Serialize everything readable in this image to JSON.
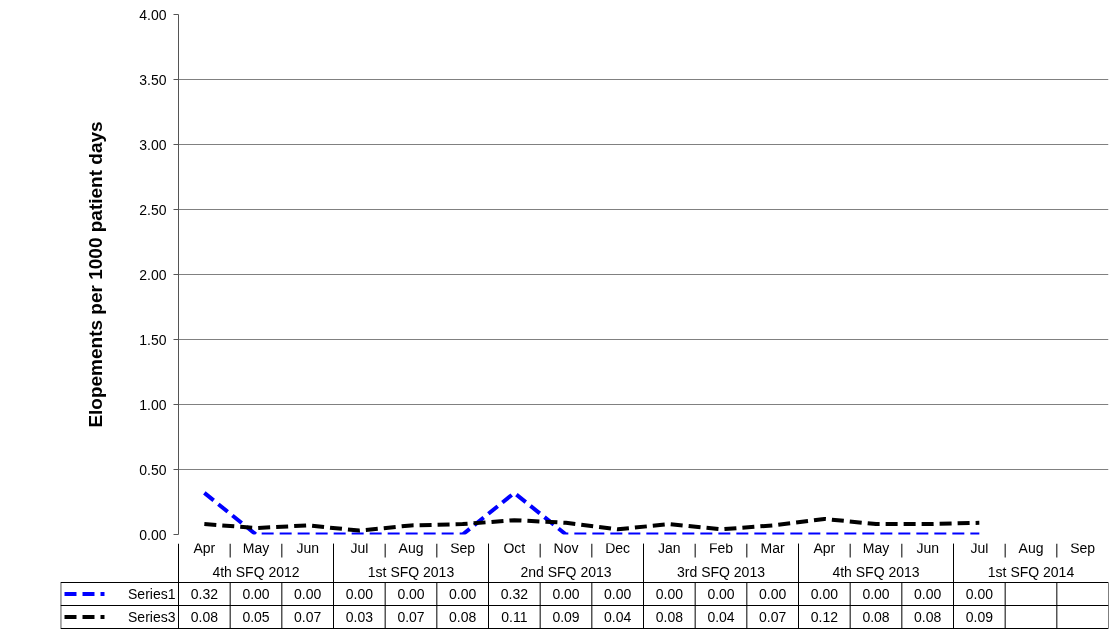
{
  "chart_data": {
    "type": "line",
    "ylabel": "Elopements per 1000 patient days",
    "categories": [
      "Apr",
      "May",
      "Jun",
      "Jul",
      "Aug",
      "Sep",
      "Oct",
      "Nov",
      "Dec",
      "Jan",
      "Feb",
      "Mar",
      "Apr",
      "May",
      "Jun",
      "Jul",
      "Aug",
      "Sep"
    ],
    "annotations": [
      "4th SFQ 2012",
      "1st SFQ 2013",
      "2nd SFQ 2013",
      "3rd SFQ 2013",
      "4th SFQ 2013",
      "1st SFQ 2014"
    ],
    "series": [
      {
        "name": "Series1",
        "color": "#0000ff",
        "values": [
          0.32,
          0,
          0,
          0,
          0,
          0,
          0.32,
          0,
          0,
          0,
          0,
          0,
          0,
          0,
          0,
          0,
          null,
          null
        ],
        "value_labels": [
          "0.32",
          "0.00",
          "0.00",
          "0.00",
          "0.00",
          "0.00",
          "0.32",
          "0.00",
          "0.00",
          "0.00",
          "0.00",
          "0.00",
          "0.00",
          "0.00",
          "0.00",
          "0.00",
          null,
          null
        ]
      },
      {
        "name": "Series3",
        "color": "#000000",
        "values": [
          0.08,
          0.05,
          0.07,
          0.03,
          0.07,
          0.08,
          0.11,
          0.09,
          0.04,
          0.08,
          0.04,
          0.07,
          0.12,
          0.08,
          0.08,
          0.09,
          null,
          null
        ],
        "value_labels": [
          "0.08",
          "0.05",
          "0.07",
          "0.03",
          "0.07",
          "0.08",
          "0.11",
          "0.09",
          "0.04",
          "0.08",
          "0.04",
          "0.07",
          "0.12",
          "0.08",
          "0.08",
          "0.09",
          null,
          null
        ]
      }
    ],
    "ylim": [
      0,
      4
    ],
    "yticks": [
      {
        "value": 0,
        "label": "0.00"
      },
      {
        "value": 0.5,
        "label": "0.50"
      },
      {
        "value": 1,
        "label": "1.00"
      },
      {
        "value": 1.5,
        "label": "1.50"
      },
      {
        "value": 2,
        "label": "2.00"
      },
      {
        "value": 2.5,
        "label": "2.50"
      },
      {
        "value": 3,
        "label": "3.00"
      },
      {
        "value": 3.5,
        "label": "3.50"
      },
      {
        "value": 4,
        "label": "4.00"
      }
    ],
    "grid": "y",
    "legend": "bottom left",
    "line_style": "dashed"
  }
}
